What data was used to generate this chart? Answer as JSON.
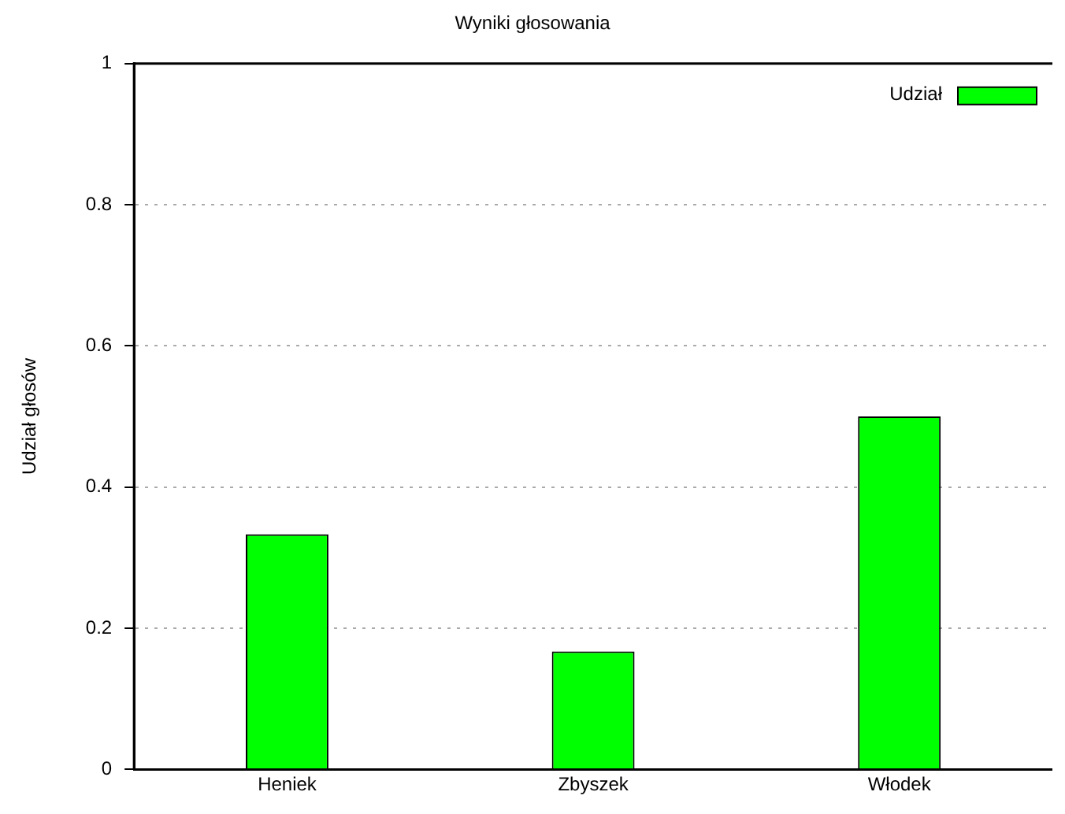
{
  "chart_data": {
    "type": "bar",
    "title": "Wyniki głosowania",
    "ylabel": "Udział głosów",
    "categories": [
      "Heniek",
      "Zbyszek",
      "Włodek"
    ],
    "series": [
      {
        "name": "Udział",
        "color": "#00ff00",
        "values": [
          0.333,
          0.167,
          0.5
        ]
      }
    ],
    "ylim": [
      0,
      1
    ],
    "yticks": [
      0,
      0.2,
      0.4,
      0.6,
      0.8,
      1
    ],
    "grid": "y",
    "legend": "top right"
  }
}
